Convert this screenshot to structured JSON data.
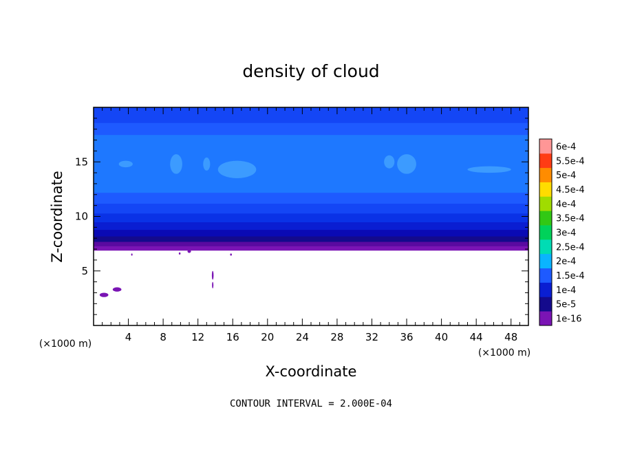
{
  "chart_data": {
    "type": "heatmap",
    "title": "density of cloud",
    "xlabel": "X-coordinate",
    "ylabel": "Z-coordinate",
    "x_unit": "(×1000 m)",
    "z_unit": "(×1000 m)",
    "xlim": [
      0,
      50
    ],
    "ylim": [
      0,
      20
    ],
    "x_ticks": [
      4,
      8,
      12,
      16,
      20,
      24,
      28,
      32,
      36,
      40,
      44,
      48
    ],
    "y_ticks": [
      5,
      10,
      15
    ],
    "contour_interval": "CONTOUR INTERVAL = 2.000E-04",
    "colorbar": {
      "labels": [
        "1e-16",
        "5e-5",
        "1e-4",
        "1.5e-4",
        "2e-4",
        "2.5e-4",
        "3e-4",
        "3.5e-4",
        "4e-4",
        "4.5e-4",
        "5e-4",
        "5.5e-4",
        "6e-4"
      ],
      "colors": [
        "#7a14b4",
        "#140a8c",
        "#0a1ed2",
        "#1e5aff",
        "#0ab4ff",
        "#00dcb4",
        "#00d25a",
        "#32c814",
        "#a0dc00",
        "#ffdc00",
        "#ff8c00",
        "#ff3c14",
        "#ff9696"
      ]
    },
    "layers": [
      {
        "z_from": 6.9,
        "z_to": 7.3,
        "color": "#7a14b4"
      },
      {
        "z_from": 7.3,
        "z_to": 7.7,
        "color": "#5a0aa0"
      },
      {
        "z_from": 7.7,
        "z_to": 8.2,
        "color": "#140a8c"
      },
      {
        "z_from": 8.2,
        "z_to": 8.8,
        "color": "#0a0ab4"
      },
      {
        "z_from": 8.8,
        "z_to": 9.5,
        "color": "#0a1ed2"
      },
      {
        "z_from": 9.5,
        "z_to": 10.3,
        "color": "#0a32e6"
      },
      {
        "z_from": 10.3,
        "z_to": 11.2,
        "color": "#1446f5"
      },
      {
        "z_from": 11.2,
        "z_to": 12.2,
        "color": "#1e5aff"
      },
      {
        "z_from": 12.2,
        "z_to": 17.5,
        "color": "#1e78ff"
      },
      {
        "z_from": 17.5,
        "z_to": 18.6,
        "color": "#1e5aff"
      },
      {
        "z_from": 18.6,
        "z_to": 20,
        "color": "#1446f5"
      }
    ],
    "patches": [
      {
        "x": 3.7,
        "z": 14.8,
        "rx": 0.8,
        "rz": 0.3,
        "color": "#3c9bff"
      },
      {
        "x": 9.5,
        "z": 14.8,
        "rx": 0.7,
        "rz": 0.9,
        "color": "#3c9bff"
      },
      {
        "x": 13.0,
        "z": 14.8,
        "rx": 0.4,
        "rz": 0.6,
        "color": "#3c9bff"
      },
      {
        "x": 16.5,
        "z": 14.3,
        "rx": 2.2,
        "rz": 0.8,
        "color": "#3c9bff"
      },
      {
        "x": 34.0,
        "z": 15.0,
        "rx": 0.6,
        "rz": 0.6,
        "color": "#3c9bff"
      },
      {
        "x": 36.0,
        "z": 14.8,
        "rx": 1.1,
        "rz": 0.9,
        "color": "#3c9bff"
      },
      {
        "x": 45.5,
        "z": 14.3,
        "rx": 2.5,
        "rz": 0.3,
        "color": "#3c9bff"
      }
    ],
    "specks": [
      {
        "x": 1.2,
        "z": 2.8,
        "rx": 0.5,
        "rz": 0.2,
        "color": "#7a14b4"
      },
      {
        "x": 2.7,
        "z": 3.3,
        "rx": 0.5,
        "rz": 0.2,
        "color": "#7a14b4"
      },
      {
        "x": 13.7,
        "z": 4.6,
        "rx": 0.1,
        "rz": 0.4,
        "color": "#7a14b4"
      },
      {
        "x": 13.7,
        "z": 3.7,
        "rx": 0.05,
        "rz": 0.3,
        "color": "#7a14b4"
      },
      {
        "x": 11.0,
        "z": 6.8,
        "rx": 0.2,
        "rz": 0.15,
        "color": "#7a14b4"
      },
      {
        "x": 9.9,
        "z": 6.6,
        "rx": 0.1,
        "rz": 0.1,
        "color": "#7a14b4"
      },
      {
        "x": 15.8,
        "z": 6.5,
        "rx": 0.1,
        "rz": 0.1,
        "color": "#7a14b4"
      },
      {
        "x": 4.4,
        "z": 6.5,
        "rx": 0.06,
        "rz": 0.1,
        "color": "#7a14b4"
      }
    ]
  }
}
